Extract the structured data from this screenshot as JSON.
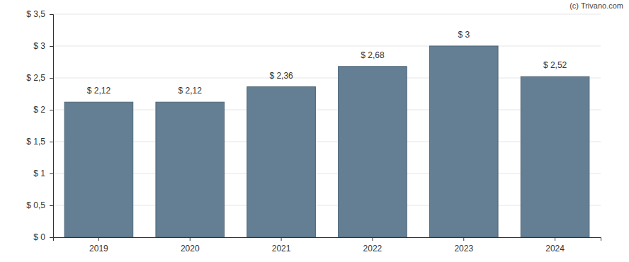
{
  "chart_data": {
    "type": "bar",
    "annotations": [
      "(c) Trivano.com"
    ],
    "categories": [
      "2019",
      "2020",
      "2021",
      "2022",
      "2023",
      "2024"
    ],
    "values": [
      2.12,
      2.12,
      2.36,
      2.68,
      3,
      2.52
    ],
    "value_labels": [
      "$ 2,12",
      "$ 2,12",
      "$ 2,36",
      "$ 2,68",
      "$ 3",
      "$ 2,52"
    ],
    "data_labels": true,
    "color": "#647f93",
    "ylim": [
      0,
      3.5
    ],
    "yticks": [
      {
        "value": 0,
        "label": "$ 0"
      },
      {
        "value": 0.5,
        "label": "$ 0,5"
      },
      {
        "value": 1,
        "label": "$ 1"
      },
      {
        "value": 1.5,
        "label": "$ 1,5"
      },
      {
        "value": 2,
        "label": "$ 2"
      },
      {
        "value": 2.5,
        "label": "$ 2,5"
      },
      {
        "value": 3,
        "label": "$ 3"
      },
      {
        "value": 3.5,
        "label": "$ 3,5"
      }
    ],
    "grid": true
  }
}
